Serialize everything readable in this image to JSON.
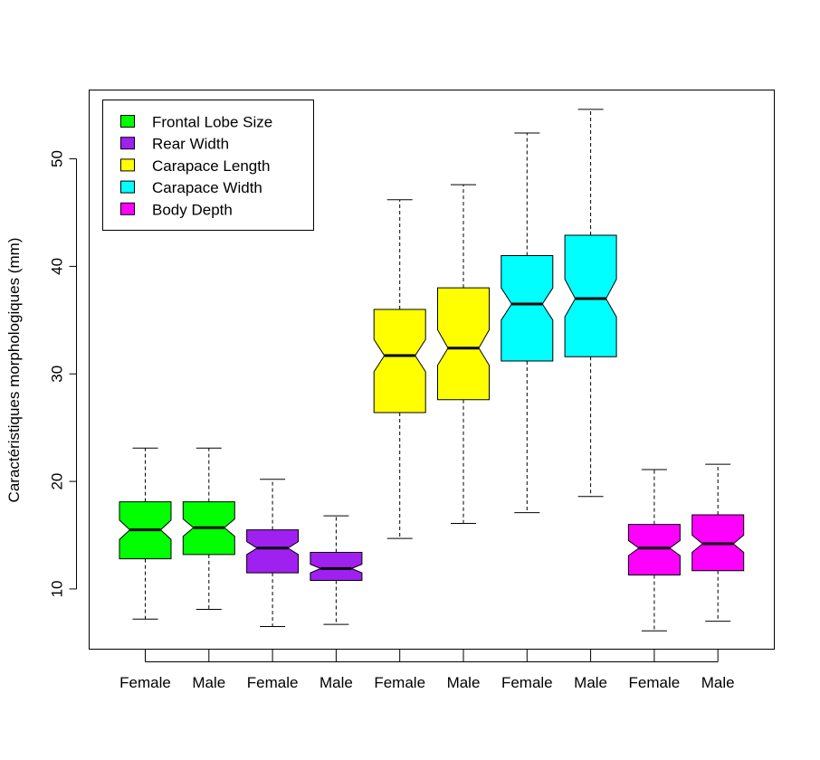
{
  "chart_data": {
    "type": "boxplot",
    "title": "",
    "xlabel": "",
    "ylabel": "Caractéristiques morphologiques (mm)",
    "ylim": [
      4.4,
      56.4
    ],
    "yticks": [
      10,
      20,
      30,
      40,
      50
    ],
    "notched": true,
    "grid": false,
    "legend_position": "top-left",
    "legend": [
      {
        "label": "Frontal Lobe Size",
        "color": "#00ff00"
      },
      {
        "label": "Rear Width",
        "color": "#a020f0"
      },
      {
        "label": "Carapace Length",
        "color": "#ffff00"
      },
      {
        "label": "Carapace Width",
        "color": "#00ffff"
      },
      {
        "label": "Body Depth",
        "color": "#ff00ff"
      }
    ],
    "boxes": [
      {
        "label": "Female",
        "color": "#00ff00",
        "min": 7.2,
        "q1": 12.8,
        "median": 15.5,
        "q3": 18.1,
        "max": 23.1,
        "notch_lo": 14.6,
        "notch_hi": 16.4
      },
      {
        "label": "Male",
        "color": "#00ff00",
        "min": 8.1,
        "q1": 13.2,
        "median": 15.7,
        "q3": 18.1,
        "max": 23.1,
        "notch_lo": 14.9,
        "notch_hi": 16.5
      },
      {
        "label": "Female",
        "color": "#a020f0",
        "min": 6.5,
        "q1": 11.5,
        "median": 13.8,
        "q3": 15.5,
        "max": 20.2,
        "notch_lo": 13.2,
        "notch_hi": 14.4
      },
      {
        "label": "Male",
        "color": "#a020f0",
        "min": 6.7,
        "q1": 10.8,
        "median": 11.9,
        "q3": 13.4,
        "max": 16.8,
        "notch_lo": 11.5,
        "notch_hi": 12.3
      },
      {
        "label": "Female",
        "color": "#ffff00",
        "min": 14.7,
        "q1": 26.4,
        "median": 31.7,
        "q3": 36.0,
        "max": 46.2,
        "notch_lo": 30.2,
        "notch_hi": 33.2
      },
      {
        "label": "Male",
        "color": "#ffff00",
        "min": 16.1,
        "q1": 27.6,
        "median": 32.4,
        "q3": 38.0,
        "max": 47.6,
        "notch_lo": 30.8,
        "notch_hi": 34.1
      },
      {
        "label": "Female",
        "color": "#00ffff",
        "min": 17.1,
        "q1": 31.2,
        "median": 36.5,
        "q3": 41.0,
        "max": 52.4,
        "notch_lo": 35.0,
        "notch_hi": 38.0
      },
      {
        "label": "Male",
        "color": "#00ffff",
        "min": 18.6,
        "q1": 31.6,
        "median": 37.0,
        "q3": 42.9,
        "max": 54.6,
        "notch_lo": 35.3,
        "notch_hi": 38.8
      },
      {
        "label": "Female",
        "color": "#ff00ff",
        "min": 6.1,
        "q1": 11.3,
        "median": 13.8,
        "q3": 16.0,
        "max": 21.1,
        "notch_lo": 13.1,
        "notch_hi": 14.5
      },
      {
        "label": "Male",
        "color": "#ff00ff",
        "min": 7.0,
        "q1": 11.7,
        "median": 14.2,
        "q3": 16.9,
        "max": 21.6,
        "notch_lo": 13.4,
        "notch_hi": 15.0
      }
    ]
  }
}
